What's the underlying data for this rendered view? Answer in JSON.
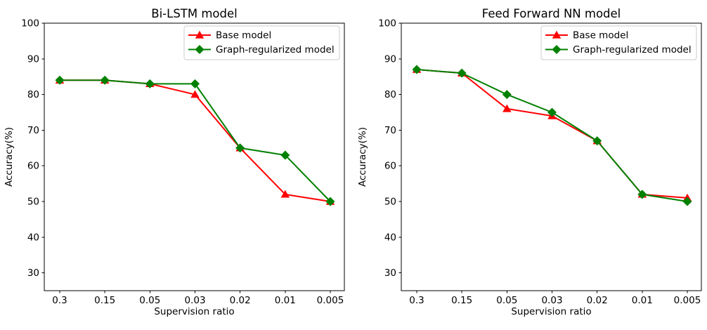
{
  "figure": {
    "background": "#ffffff",
    "axis_color": "#000000",
    "legend_border_color": "#cccccc"
  },
  "chart_data": [
    {
      "type": "line",
      "title": "Bi-LSTM model",
      "xlabel": "Supervision ratio",
      "ylabel": "Accuracy(%)",
      "categories": [
        "0.3",
        "0.15",
        "0.05",
        "0.03",
        "0.02",
        "0.01",
        "0.005"
      ],
      "yticks": [
        30,
        40,
        50,
        60,
        70,
        80,
        90,
        100
      ],
      "ylim": [
        25,
        100
      ],
      "grid": false,
      "legend_position": "upper right",
      "series": [
        {
          "name": "Base model",
          "color": "#ff0000",
          "marker": "triangle-up",
          "values": [
            84,
            84,
            83,
            80,
            65,
            52,
            50
          ]
        },
        {
          "name": "Graph-regularized model",
          "color": "#008000",
          "marker": "diamond",
          "values": [
            84,
            84,
            83,
            83,
            65,
            63,
            50
          ]
        }
      ]
    },
    {
      "type": "line",
      "title": "Feed Forward NN model",
      "xlabel": "Supervision ratio",
      "ylabel": "Accuracy(%)",
      "categories": [
        "0.3",
        "0.15",
        "0.05",
        "0.03",
        "0.02",
        "0.01",
        "0.005"
      ],
      "yticks": [
        30,
        40,
        50,
        60,
        70,
        80,
        90,
        100
      ],
      "ylim": [
        25,
        100
      ],
      "grid": false,
      "legend_position": "upper right",
      "series": [
        {
          "name": "Base model",
          "color": "#ff0000",
          "marker": "triangle-up",
          "values": [
            87,
            86,
            76,
            74,
            67,
            52,
            51
          ]
        },
        {
          "name": "Graph-regularized model",
          "color": "#008000",
          "marker": "diamond",
          "values": [
            87,
            86,
            80,
            75,
            67,
            52,
            50
          ]
        }
      ]
    }
  ]
}
